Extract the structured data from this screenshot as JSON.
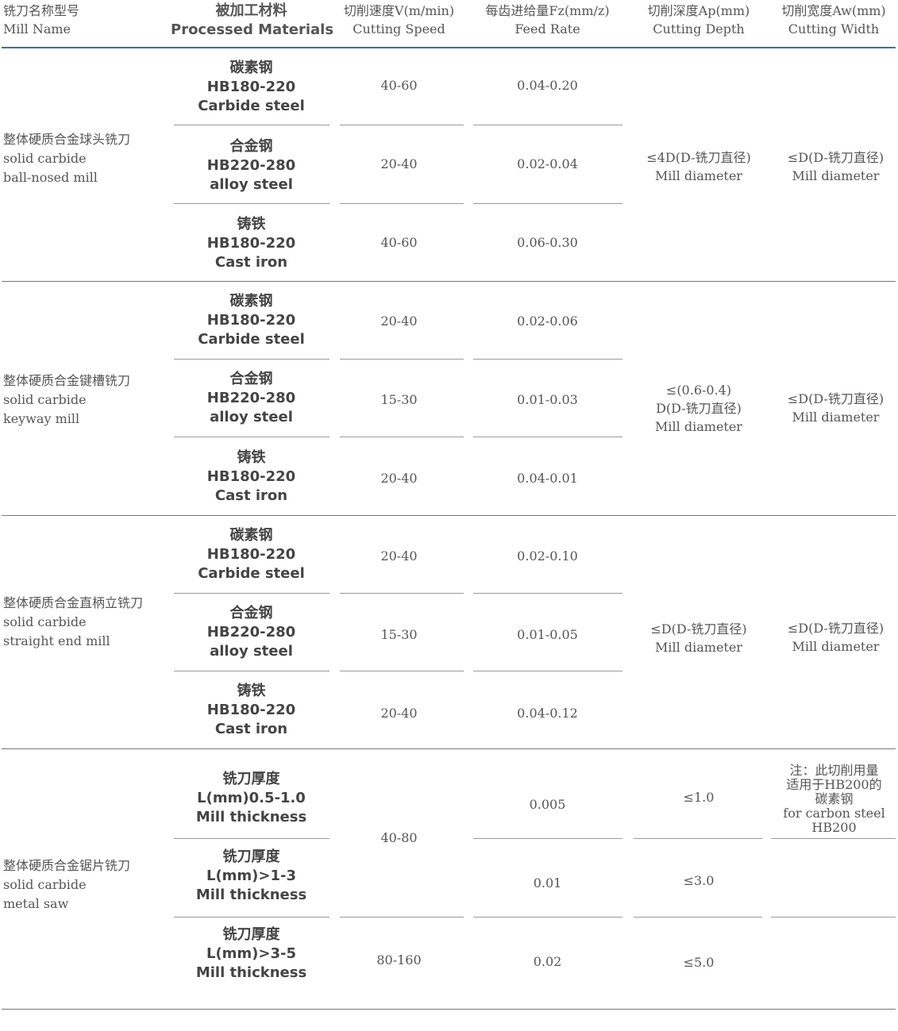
{
  "header": {
    "col1": {
      "zh": "铣刀名称型号",
      "en": "Mill Name"
    },
    "col2": {
      "zh": "被加工材料",
      "en": "Processed Materials"
    },
    "col3": {
      "zh": "切削速度V(m/min)",
      "en": "Cutting Speed"
    },
    "col4": {
      "zh": "每齿进给量Fz(mm/z)",
      "en": "Feed Rate"
    },
    "col5": {
      "zh": "切削深度Ap(mm)",
      "en": "Cutting Depth"
    },
    "col6": {
      "zh": "切削宽度Aw(mm)",
      "en": "Cutting Width"
    }
  },
  "groups": [
    {
      "mill": [
        "整体硬质合金球头铣刀",
        "solid carbide",
        "ball-nosed mill"
      ],
      "depth": [
        "≤4D(D-铣刀直径)",
        "Mill diameter"
      ],
      "width": [
        "≤D(D-铣刀直径)",
        "Mill diameter"
      ],
      "rows": [
        {
          "material": [
            "碳素钢",
            "HB180-220",
            "Carbide steel"
          ],
          "speed": "40-60",
          "feed": "0.04-0.20"
        },
        {
          "material": [
            "合金钢",
            "HB220-280",
            "alloy steel"
          ],
          "speed": "20-40",
          "feed": "0.02-0.04"
        },
        {
          "material": [
            "铸铁",
            "HB180-220",
            "Cast iron"
          ],
          "speed": "40-60",
          "feed": "0.06-0.30"
        }
      ]
    },
    {
      "mill": [
        "整体硬质合金键槽铣刀",
        "solid carbide",
        "keyway mill"
      ],
      "depth": [
        "≤(0.6-0.4)",
        "D(D-铣刀直径)",
        "Mill diameter"
      ],
      "width": [
        "≤D(D-铣刀直径)",
        "Mill diameter"
      ],
      "rows": [
        {
          "material": [
            "碳素钢",
            "HB180-220",
            "Carbide steel"
          ],
          "speed": "20-40",
          "feed": "0.02-0.06"
        },
        {
          "material": [
            "合金钢",
            "HB220-280",
            "alloy steel"
          ],
          "speed": "15-30",
          "feed": "0.01-0.03"
        },
        {
          "material": [
            "铸铁",
            "HB180-220",
            "Cast iron"
          ],
          "speed": "20-40",
          "feed": "0.04-0.01"
        }
      ]
    },
    {
      "mill": [
        "整体硬质合金直柄立铣刀",
        "solid carbide",
        "straight end mill"
      ],
      "depth": [
        "≤D(D-铣刀直径)",
        "Mill diameter"
      ],
      "width": [
        "≤D(D-铣刀直径)",
        "Mill diameter"
      ],
      "rows": [
        {
          "material": [
            "碳素钢",
            "HB180-220",
            "Carbide steel"
          ],
          "speed": "20-40",
          "feed": "0.02-0.10"
        },
        {
          "material": [
            "合金钢",
            "HB220-280",
            "alloy steel"
          ],
          "speed": "15-30",
          "feed": "0.01-0.05"
        },
        {
          "material": [
            "铸铁",
            "HB180-220",
            "Cast iron"
          ],
          "speed": "20-40",
          "feed": "0.04-0.12"
        }
      ]
    },
    {
      "mill": [
        "整体硬质合金锯片铣刀",
        "solid carbide",
        "metal saw"
      ],
      "speed_shared": "40-80",
      "note": [
        "注：此切削用量",
        "适用于HB200的",
        "碳素钢",
        "for carbon steel",
        "HB200"
      ],
      "rows": [
        {
          "material": [
            "铣刀厚度",
            "L(mm)0.5-1.0",
            "Mill thickness"
          ],
          "feed": "0.005",
          "depth": "≤1.0"
        },
        {
          "material": [
            "铣刀厚度",
            "L(mm)>1-3",
            "Mill thickness"
          ],
          "feed": "0.01",
          "depth": "≤3.0"
        },
        {
          "material": [
            "铣刀厚度",
            "L(mm)>3-5",
            "Mill thickness"
          ],
          "speed": "80-160",
          "feed": "0.02",
          "depth": "≤5.0"
        }
      ]
    }
  ]
}
